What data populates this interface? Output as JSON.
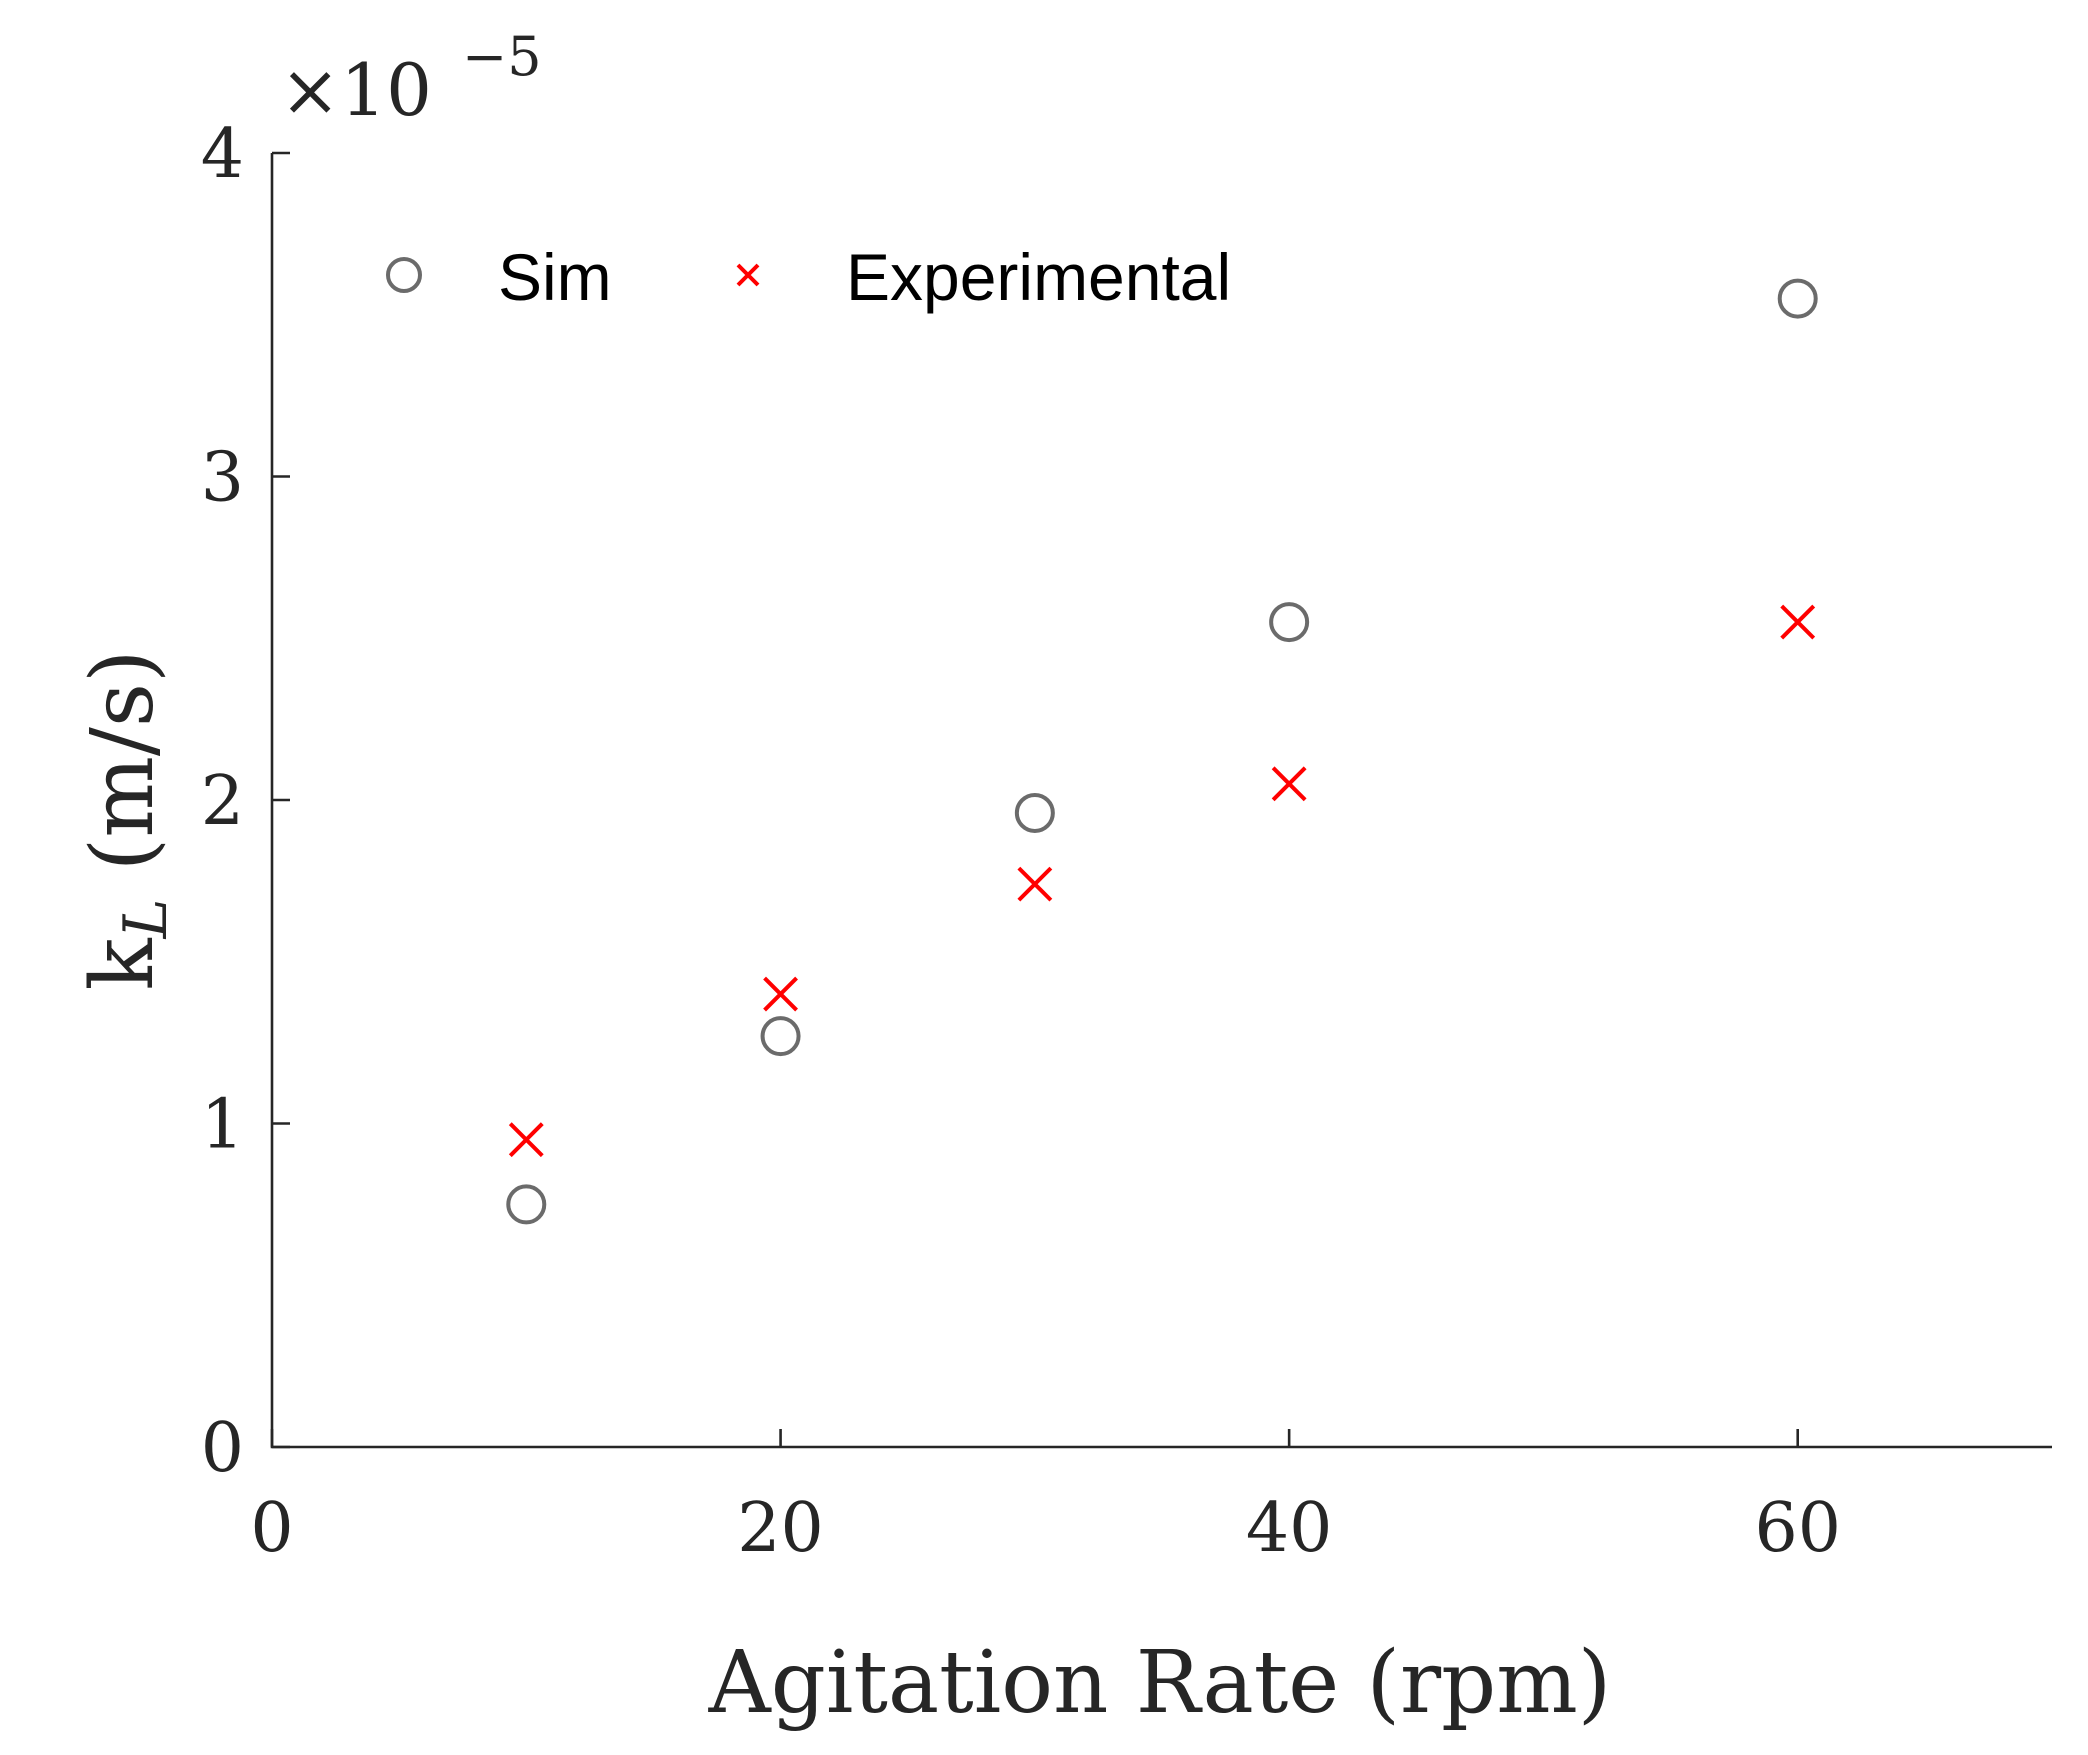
{
  "chart_data": {
    "type": "scatter",
    "title": "",
    "xlabel": "Agitation Rate (rpm)",
    "ylabel_main": "k",
    "ylabel_sub": "L",
    "ylabel_units": " (m/s)",
    "y_exponent_prefix": "×10",
    "y_exponent_power": "−5",
    "xlim": [
      0,
      70
    ],
    "ylim": [
      0,
      4
    ],
    "xticks": [
      0,
      20,
      40,
      60
    ],
    "yticks": [
      0,
      1,
      2,
      3,
      4
    ],
    "xtick_labels": [
      "0",
      "20",
      "40",
      "60"
    ],
    "ytick_labels": [
      "0",
      "1",
      "2",
      "3",
      "4"
    ],
    "grid": false,
    "legend_position": "top-left",
    "series": [
      {
        "name": "Sim",
        "marker": "circle",
        "color": "#6b6b6b",
        "x": [
          10,
          20,
          30,
          40,
          60
        ],
        "y": [
          0.75,
          1.27,
          1.96,
          2.55,
          3.55
        ]
      },
      {
        "name": "Experimental",
        "marker": "x",
        "color": "#ff0000",
        "x": [
          10,
          20,
          30,
          40,
          60
        ],
        "y": [
          0.95,
          1.4,
          1.74,
          2.05,
          2.55
        ]
      }
    ]
  }
}
